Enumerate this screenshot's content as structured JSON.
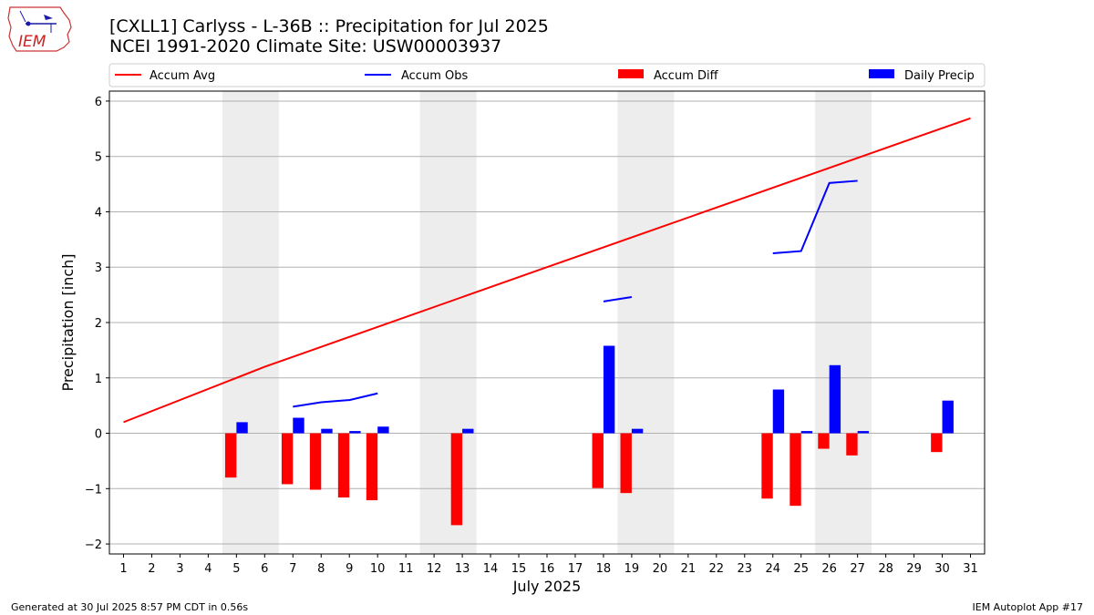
{
  "header": {
    "logo_text": "IEM",
    "title_line1": "[CXLL1] Carlyss - L-36B :: Precipitation for Jul 2025",
    "title_line2": "NCEI 1991-2020 Climate Site: USW00003937"
  },
  "footer": {
    "generated": "Generated at 30 Jul 2025 8:57 PM CDT in 0.56s",
    "app": "IEM Autoplot App #17"
  },
  "chart_data": {
    "type": "bar",
    "xlabel": "July 2025",
    "ylabel": "Precipitation [inch]",
    "xlim": [
      0.5,
      31.5
    ],
    "ylim": [
      -2.18,
      6.18
    ],
    "yticks": [
      -2,
      -1,
      0,
      1,
      2,
      3,
      4,
      5,
      6
    ],
    "xticks": [
      1,
      2,
      3,
      4,
      5,
      6,
      7,
      8,
      9,
      10,
      11,
      12,
      13,
      14,
      15,
      16,
      17,
      18,
      19,
      20,
      21,
      22,
      23,
      24,
      25,
      26,
      27,
      28,
      29,
      30,
      31
    ],
    "grid": "horizontal",
    "legend_placement": "top",
    "weekend_shading": [
      [
        4.5,
        6.5
      ],
      [
        11.5,
        13.5
      ],
      [
        18.5,
        20.5
      ],
      [
        25.5,
        27.5
      ]
    ],
    "colors": {
      "accum_avg": "#ff0000",
      "accum_obs": "#0000ff",
      "accum_diff": "#ff0000",
      "daily_precip": "#0000ff",
      "shade": "#ededed",
      "grid": "#b0b0b0"
    },
    "legend": [
      {
        "label": "Accum Avg",
        "kind": "line",
        "color": "#ff0000"
      },
      {
        "label": "Accum Obs",
        "kind": "line",
        "color": "#0000ff"
      },
      {
        "label": "Accum Diff",
        "kind": "bar",
        "color": "#ff0000"
      },
      {
        "label": "Daily Precip",
        "kind": "bar",
        "color": "#0000ff"
      }
    ],
    "series": [
      {
        "name": "Accum Avg",
        "kind": "line",
        "x": [
          1,
          6,
          16,
          31
        ],
        "values": [
          0.2,
          1.2,
          3.0,
          5.69
        ]
      },
      {
        "name": "Accum Obs",
        "kind": "line",
        "segments": [
          {
            "x": [
              7,
              8,
              9,
              10
            ],
            "values": [
              0.48,
              0.56,
              0.6,
              0.72
            ]
          },
          {
            "x": [
              18,
              19
            ],
            "values": [
              2.38,
              2.46
            ]
          },
          {
            "x": [
              24,
              25,
              26,
              27
            ],
            "values": [
              3.25,
              3.29,
              4.52,
              4.56
            ]
          }
        ]
      },
      {
        "name": "Accum Diff",
        "kind": "bar",
        "x": [
          5,
          7,
          8,
          9,
          10,
          13,
          18,
          19,
          24,
          25,
          26,
          27,
          30
        ],
        "values": [
          -0.8,
          -0.92,
          -1.02,
          -1.16,
          -1.21,
          -1.66,
          -0.99,
          -1.08,
          -1.18,
          -1.31,
          -0.28,
          -0.4,
          -0.34
        ]
      },
      {
        "name": "Daily Precip",
        "kind": "bar",
        "x": [
          5,
          7,
          8,
          9,
          10,
          13,
          18,
          19,
          24,
          25,
          26,
          27,
          30
        ],
        "values": [
          0.2,
          0.28,
          0.08,
          0.04,
          0.12,
          0.08,
          1.58,
          0.08,
          0.79,
          0.04,
          1.23,
          0.04,
          0.59
        ]
      }
    ]
  }
}
